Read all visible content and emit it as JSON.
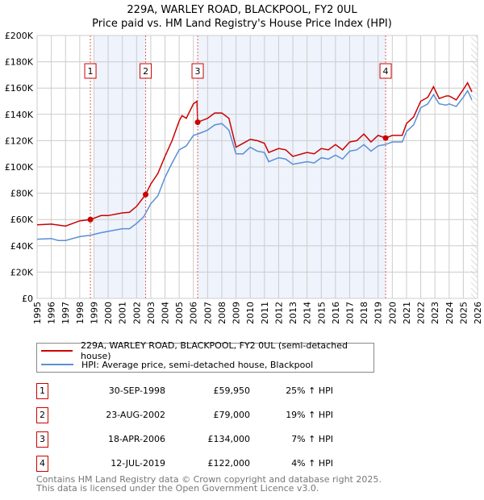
{
  "title": "229A, WARLEY ROAD, BLACKPOOL, FY2 0UL",
  "subtitle": "Price paid vs. HM Land Registry's House Price Index (HPI)",
  "chart_data": {
    "type": "line",
    "ylim": [
      0,
      200000
    ],
    "xlim": [
      1995,
      2026
    ],
    "yticks": [
      {
        "v": 0,
        "l": "£0"
      },
      {
        "v": 20000,
        "l": "£20K"
      },
      {
        "v": 40000,
        "l": "£40K"
      },
      {
        "v": 60000,
        "l": "£60K"
      },
      {
        "v": 80000,
        "l": "£80K"
      },
      {
        "v": 100000,
        "l": "£100K"
      },
      {
        "v": 120000,
        "l": "£120K"
      },
      {
        "v": 140000,
        "l": "£140K"
      },
      {
        "v": 160000,
        "l": "£160K"
      },
      {
        "v": 180000,
        "l": "£180K"
      },
      {
        "v": 200000,
        "l": "£200K"
      }
    ],
    "xticks": [
      "1995",
      "1996",
      "1997",
      "1998",
      "1999",
      "2000",
      "2001",
      "2002",
      "2003",
      "2004",
      "2005",
      "2006",
      "2007",
      "2008",
      "2009",
      "2010",
      "2011",
      "2012",
      "2013",
      "2014",
      "2015",
      "2016",
      "2017",
      "2018",
      "2019",
      "2020",
      "2021",
      "2022",
      "2023",
      "2024",
      "2025",
      "2026"
    ],
    "series": [
      {
        "name": "229A, WARLEY ROAD, BLACKPOOL, FY2 0UL (semi-detached house)",
        "color": "#cc0000",
        "points": [
          [
            1995,
            56000
          ],
          [
            1996,
            56500
          ],
          [
            1997,
            55000
          ],
          [
            1998,
            59000
          ],
          [
            1998.75,
            59950
          ],
          [
            1999.5,
            63000
          ],
          [
            2000,
            63000
          ],
          [
            2001,
            65000
          ],
          [
            2001.5,
            65500
          ],
          [
            2002,
            70000
          ],
          [
            2002.64,
            79000
          ],
          [
            2003,
            87000
          ],
          [
            2003.5,
            95000
          ],
          [
            2004,
            108000
          ],
          [
            2004.5,
            120000
          ],
          [
            2005,
            135000
          ],
          [
            2005.2,
            139000
          ],
          [
            2005.5,
            137000
          ],
          [
            2006,
            148000
          ],
          [
            2006.25,
            150000
          ],
          [
            2006.3,
            134000
          ],
          [
            2007,
            137000
          ],
          [
            2007.5,
            141000
          ],
          [
            2008,
            141000
          ],
          [
            2008.5,
            137000
          ],
          [
            2009,
            115000
          ],
          [
            2009.5,
            118000
          ],
          [
            2010,
            121000
          ],
          [
            2010.5,
            120000
          ],
          [
            2011,
            118000
          ],
          [
            2011.3,
            111000
          ],
          [
            2012,
            114000
          ],
          [
            2012.5,
            113000
          ],
          [
            2013,
            108000
          ],
          [
            2014,
            111000
          ],
          [
            2014.5,
            110000
          ],
          [
            2015,
            114000
          ],
          [
            2015.5,
            113000
          ],
          [
            2016,
            117000
          ],
          [
            2016.5,
            113000
          ],
          [
            2017,
            119000
          ],
          [
            2017.5,
            120000
          ],
          [
            2018,
            125000
          ],
          [
            2018.5,
            119000
          ],
          [
            2019,
            124000
          ],
          [
            2019.53,
            122000
          ],
          [
            2020,
            124000
          ],
          [
            2020.7,
            124000
          ],
          [
            2021,
            133000
          ],
          [
            2021.5,
            138000
          ],
          [
            2022,
            150000
          ],
          [
            2022.5,
            153000
          ],
          [
            2022.9,
            161000
          ],
          [
            2023.3,
            152000
          ],
          [
            2023.8,
            154000
          ],
          [
            2024,
            154000
          ],
          [
            2024.5,
            151000
          ],
          [
            2025,
            159000
          ],
          [
            2025.3,
            164000
          ],
          [
            2025.6,
            157000
          ]
        ]
      },
      {
        "name": "HPI: Average price, semi-detached house, Blackpool",
        "color": "#5b8fd4",
        "points": [
          [
            1995,
            45000
          ],
          [
            1996,
            45500
          ],
          [
            1996.5,
            44000
          ],
          [
            1997,
            44000
          ],
          [
            1998,
            47000
          ],
          [
            1998.75,
            48000
          ],
          [
            1999.5,
            50000
          ],
          [
            2000,
            51000
          ],
          [
            2001,
            53000
          ],
          [
            2001.5,
            53000
          ],
          [
            2002,
            57000
          ],
          [
            2002.5,
            62000
          ],
          [
            2003,
            72000
          ],
          [
            2003.5,
            78000
          ],
          [
            2004,
            92000
          ],
          [
            2004.5,
            103000
          ],
          [
            2005,
            113000
          ],
          [
            2005.5,
            116000
          ],
          [
            2006,
            124000
          ],
          [
            2006.3,
            125000
          ],
          [
            2007,
            128000
          ],
          [
            2007.5,
            132000
          ],
          [
            2008,
            133000
          ],
          [
            2008.5,
            128000
          ],
          [
            2009,
            110000
          ],
          [
            2009.5,
            110000
          ],
          [
            2010,
            115000
          ],
          [
            2010.5,
            112000
          ],
          [
            2011,
            111000
          ],
          [
            2011.3,
            104000
          ],
          [
            2012,
            107000
          ],
          [
            2012.5,
            106000
          ],
          [
            2013,
            102000
          ],
          [
            2014,
            104000
          ],
          [
            2014.5,
            103000
          ],
          [
            2015,
            107000
          ],
          [
            2015.5,
            106000
          ],
          [
            2016,
            109000
          ],
          [
            2016.5,
            106000
          ],
          [
            2017,
            112000
          ],
          [
            2017.5,
            113000
          ],
          [
            2018,
            117000
          ],
          [
            2018.5,
            112000
          ],
          [
            2019,
            116000
          ],
          [
            2019.5,
            117000
          ],
          [
            2020,
            119000
          ],
          [
            2020.7,
            119000
          ],
          [
            2021,
            127000
          ],
          [
            2021.5,
            132000
          ],
          [
            2022,
            145000
          ],
          [
            2022.5,
            148000
          ],
          [
            2022.9,
            155000
          ],
          [
            2023.3,
            148000
          ],
          [
            2023.8,
            147000
          ],
          [
            2024,
            148000
          ],
          [
            2024.5,
            146000
          ],
          [
            2025,
            153000
          ],
          [
            2025.3,
            158000
          ],
          [
            2025.6,
            151000
          ]
        ]
      }
    ],
    "sales": [
      {
        "n": "1",
        "x": 1998.75,
        "y": 59950,
        "date": "30-SEP-1998",
        "price": "£59,950",
        "hpi": "25% ↑ HPI"
      },
      {
        "n": "2",
        "x": 2002.64,
        "y": 79000,
        "date": "23-AUG-2002",
        "price": "£79,000",
        "hpi": "19% ↑ HPI"
      },
      {
        "n": "3",
        "x": 2006.3,
        "y": 134000,
        "date": "18-APR-2006",
        "price": "£134,000",
        "hpi": "7% ↑ HPI"
      },
      {
        "n": "4",
        "x": 2019.53,
        "y": 122000,
        "date": "12-JUL-2019",
        "price": "£122,000",
        "hpi": "4% ↑ HPI"
      }
    ],
    "shaded": [
      [
        1999,
        2002.64
      ],
      [
        2006.3,
        2019.53
      ]
    ],
    "hatched_from": 2025.55
  },
  "legend": {
    "property": "229A, WARLEY ROAD, BLACKPOOL, FY2 0UL (semi-detached house)",
    "hpi": "HPI: Average price, semi-detached house, Blackpool"
  },
  "footer": {
    "line1": "Contains HM Land Registry data © Crown copyright and database right 2025.",
    "line2": "This data is licensed under the Open Government Licence v3.0."
  }
}
